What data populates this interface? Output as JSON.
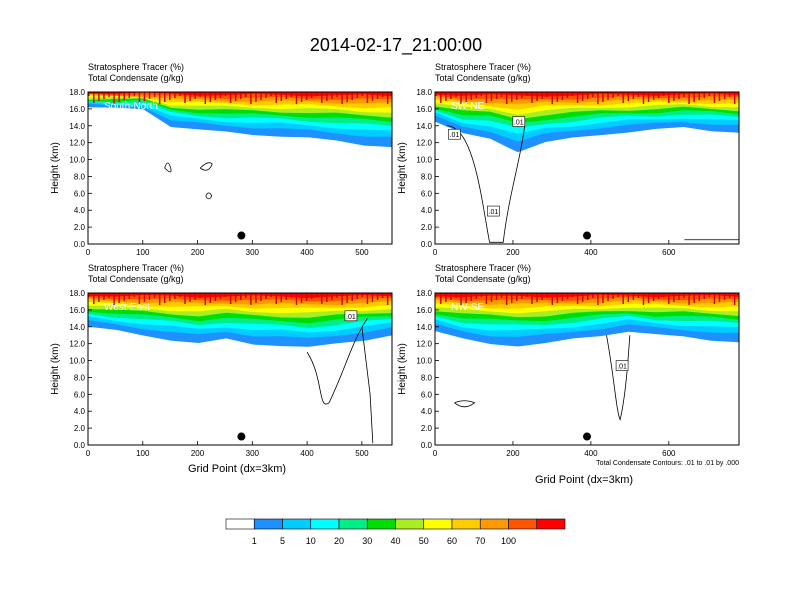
{
  "title": "2014-02-17_21:00:00",
  "panels": [
    {
      "id": "south-north",
      "label": "South-North",
      "subtitle1": "Stratosphere Tracer   (%)",
      "subtitle2": "Total Condensate   (g/kg)",
      "ylabel": "Height (km)",
      "xlabel": "",
      "xlim": [
        0,
        555
      ],
      "xticks": [
        "0",
        "100",
        "200",
        "300",
        "400",
        "500"
      ],
      "xtick_values": [
        0,
        100,
        200,
        300,
        400,
        500
      ],
      "ylim": [
        0,
        18
      ],
      "yticks": [
        "0.0",
        "2.0",
        "4.0",
        "6.0",
        "8.0",
        "10.0",
        "12.0",
        "14.0",
        "16.0",
        "18.0"
      ],
      "marker": [
        280,
        1.0
      ],
      "contour_labels": [],
      "note": ""
    },
    {
      "id": "sw-ne",
      "label": "SW-NE",
      "subtitle1": "Stratosphere Tracer   (%)",
      "subtitle2": "Total Condensate   (g/kg)",
      "ylabel": "Height (km)",
      "xlabel": "",
      "xlim": [
        0,
        780
      ],
      "xticks": [
        "0",
        "200",
        "400",
        "600"
      ],
      "xtick_values": [
        0,
        200,
        400,
        600
      ],
      "ylim": [
        0,
        18
      ],
      "yticks": [
        "0.0",
        "2.0",
        "4.0",
        "6.0",
        "8.0",
        "10.0",
        "12.0",
        "14.0",
        "16.0",
        "18.0"
      ],
      "marker": [
        390,
        1.0
      ],
      "contour_labels": [
        {
          "text": ".01",
          "x": 50,
          "y": 13.0
        },
        {
          "text": ".01",
          "x": 215,
          "y": 14.5
        },
        {
          "text": ".01",
          "x": 150,
          "y": 3.9
        }
      ],
      "note": ""
    },
    {
      "id": "west-east",
      "label": "West-East",
      "subtitle1": "Stratosphere Tracer   (%)",
      "subtitle2": "Total Condensate   (g/kg)",
      "ylabel": "Height (km)",
      "xlabel": "Grid Point (dx=3km)",
      "xlim": [
        0,
        555
      ],
      "xticks": [
        "0",
        "100",
        "200",
        "300",
        "400",
        "500"
      ],
      "xtick_values": [
        0,
        100,
        200,
        300,
        400,
        500
      ],
      "ylim": [
        0,
        18
      ],
      "yticks": [
        "0.0",
        "2.0",
        "4.0",
        "6.0",
        "8.0",
        "10.0",
        "12.0",
        "14.0",
        "16.0",
        "18.0"
      ],
      "marker": [
        280,
        1.0
      ],
      "contour_labels": [
        {
          "text": ".01",
          "x": 480,
          "y": 15.3
        }
      ],
      "note": ""
    },
    {
      "id": "nw-se",
      "label": "NW-SE",
      "subtitle1": "Stratosphere Tracer   (%)",
      "subtitle2": "Total Condensate   (g/kg)",
      "ylabel": "Height (km)",
      "xlabel": "Grid Point (dx=3km)",
      "xlim": [
        0,
        780
      ],
      "xticks": [
        "0",
        "200",
        "400",
        "600"
      ],
      "xtick_values": [
        0,
        200,
        400,
        600
      ],
      "ylim": [
        0,
        18
      ],
      "yticks": [
        "0.0",
        "2.0",
        "4.0",
        "6.0",
        "8.0",
        "10.0",
        "12.0",
        "14.0",
        "16.0",
        "18.0"
      ],
      "marker": [
        390,
        1.0
      ],
      "contour_labels": [
        {
          "text": ".01",
          "x": 480,
          "y": 9.4
        }
      ],
      "note": "Total Condensate Contours: .01 to .01 by .000"
    }
  ],
  "colorbar": {
    "labels": [
      "1",
      "5",
      "10",
      "20",
      "30",
      "40",
      "50",
      "60",
      "70",
      "100"
    ],
    "colors": [
      "#ffffff",
      "#1e90ff",
      "#00ccff",
      "#00ffff",
      "#00ee88",
      "#00dd00",
      "#aaee22",
      "#ffff00",
      "#ffcc00",
      "#ff9900",
      "#ff5500",
      "#ff0000"
    ]
  },
  "chart_data": {
    "type": "heatmap",
    "title": "2014-02-17_21:00:00",
    "ylabel": "Height (km)",
    "xlabel": "Grid Point (dx=3km)",
    "ylim": [
      0,
      18
    ],
    "levels": [
      1,
      5,
      10,
      20,
      30,
      40,
      50,
      60,
      70,
      100
    ],
    "series": [
      {
        "name": "South-North",
        "top_layer_base_km": [
          16.0,
          15.3,
          14.0,
          13.5,
          13.2,
          12.8,
          12.2,
          11.5
        ]
      },
      {
        "name": "SW-NE",
        "top_layer_base_km": [
          13.0,
          12.0,
          12.5,
          13.0,
          13.5,
          13.8,
          13.0
        ]
      },
      {
        "name": "West-East",
        "top_layer_base_km": [
          13.5,
          13.0,
          12.0,
          12.5,
          12.0,
          11.5,
          12.0,
          13.0
        ]
      },
      {
        "name": "NW-SE",
        "top_layer_base_km": [
          13.0,
          12.0,
          11.8,
          12.5,
          13.5,
          13.0,
          12.5
        ]
      }
    ]
  }
}
